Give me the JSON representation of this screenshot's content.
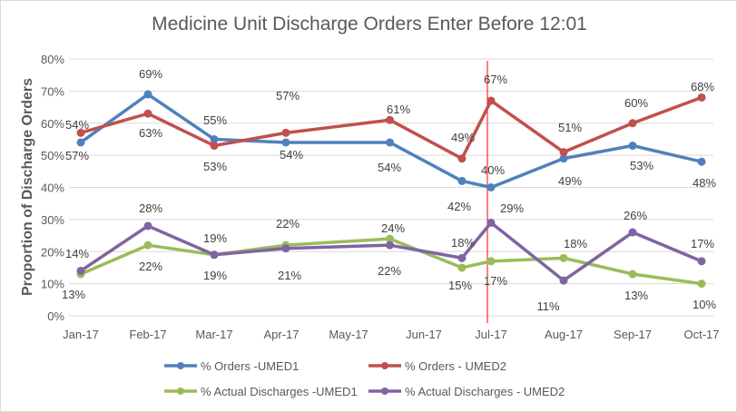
{
  "chart_data": {
    "type": "line",
    "title": "Medicine Unit Discharge Orders Enter Before 12:01",
    "xlabel": "",
    "ylabel": "Proportion of Discharge Orders",
    "x_tick_labels": [
      "Jan-17",
      "Feb-17",
      "Mar-17",
      "Apr-17",
      "May-17",
      "Jun-17",
      "Jul-17",
      "Aug-17",
      "Sep-17",
      "Oct-17"
    ],
    "y_tick_labels": [
      "0%",
      "10%",
      "20%",
      "30%",
      "40%",
      "50%",
      "60%",
      "70%",
      "80%"
    ],
    "ylim": [
      0,
      0.8
    ],
    "grid": "horizontal",
    "legend_position": "bottom",
    "x": [
      "2017-01-01",
      "2017-02-01",
      "2017-03-01",
      "2017-04-03",
      "2017-05-18",
      "2017-06-18",
      "2017-07-01",
      "2017-08-01",
      "2017-09-01",
      "2017-10-01"
    ],
    "series": [
      {
        "name": "% Orders -UMED1",
        "color": "#4f81bd",
        "values": [
          0.54,
          0.69,
          0.55,
          0.54,
          0.54,
          0.42,
          0.4,
          0.49,
          0.53,
          0.48
        ],
        "labels": [
          "54%",
          "69%",
          "55%",
          "54%",
          "54%",
          "42%",
          "40%",
          "49%",
          "53%",
          "48%"
        ]
      },
      {
        "name": "% Orders - UMED2",
        "color": "#c0504d",
        "values": [
          0.57,
          0.63,
          0.53,
          0.57,
          0.61,
          0.49,
          0.67,
          0.51,
          0.6,
          0.68
        ],
        "labels": [
          "57%",
          "63%",
          "53%",
          "57%",
          "61%",
          "49%",
          "67%",
          "51%",
          "60%",
          "68%"
        ]
      },
      {
        "name": "% Actual Discharges -UMED1",
        "color": "#9bbb59",
        "values": [
          0.13,
          0.22,
          0.19,
          0.22,
          0.24,
          0.15,
          0.17,
          0.18,
          0.13,
          0.1
        ],
        "labels": [
          "13%",
          "22%",
          "19%",
          "22%",
          "24%",
          "15%",
          "17%",
          "18%",
          "13%",
          "10%"
        ]
      },
      {
        "name": "% Actual Discharges - UMED2",
        "color": "#8064a2",
        "values": [
          0.14,
          0.28,
          0.19,
          0.21,
          0.22,
          0.18,
          0.29,
          0.11,
          0.26,
          0.17
        ],
        "labels": [
          "14%",
          "28%",
          "19%",
          "21%",
          "22%",
          "18%",
          "29%",
          "11%",
          "26%",
          "17%"
        ]
      }
    ],
    "annotations": [
      {
        "type": "vertical-line",
        "x": "2017-06-30",
        "color": "#ff0000"
      }
    ]
  }
}
